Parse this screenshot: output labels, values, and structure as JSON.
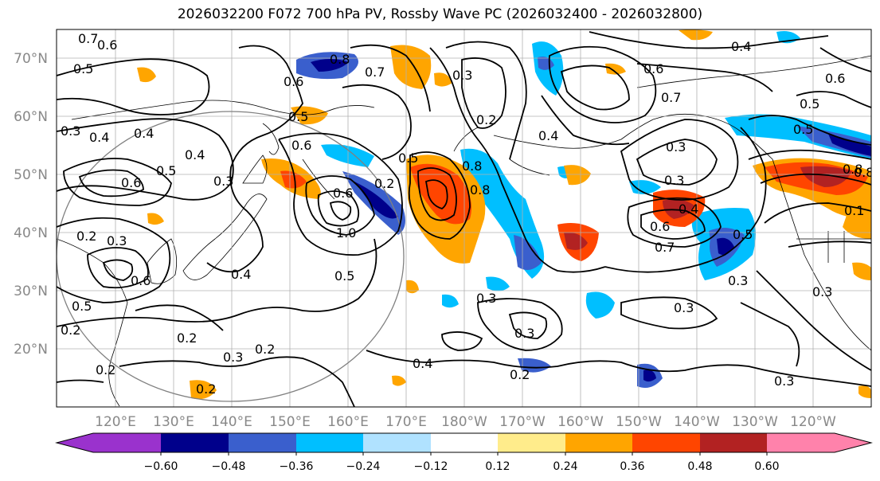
{
  "title": "2026032200 F072 700 hPa PV, Rossby Wave PC (2026032400 - 2026032800)",
  "axes": {
    "lat_labels": [
      "70°N",
      "60°N",
      "50°N",
      "40°N",
      "30°N",
      "20°N"
    ],
    "lon_labels": [
      "120°E",
      "130°E",
      "140°E",
      "150°E",
      "160°E",
      "170°E",
      "180°W",
      "170°W",
      "160°W",
      "150°W",
      "140°W",
      "130°W",
      "120°W"
    ]
  },
  "colorbar": {
    "ticks": [
      "−0.60",
      "−0.48",
      "−0.36",
      "−0.24",
      "−0.12",
      "0.12",
      "0.24",
      "0.36",
      "0.48",
      "0.60"
    ],
    "colors": [
      "#9a32cd",
      "#00008b",
      "#3a5fcd",
      "#00bfff",
      "#b0e2ff",
      "#ffffff",
      "#ffec8b",
      "#ffa500",
      "#ff4500",
      "#b22222",
      "#ff82ab"
    ]
  },
  "contour_labels": [
    "0.7",
    "0.6",
    "0.5",
    "0.3",
    "0.4",
    "0.4",
    "0.5",
    "0.6",
    "0.3",
    "0.4",
    "0.2",
    "0.3",
    "0.6",
    "0.5",
    "0.4",
    "0.2",
    "0.5",
    "0.6",
    "0.8",
    "0.7",
    "0.6",
    "0.5",
    "0.6",
    "0.2",
    "0.3",
    "0.8",
    "0.8",
    "0.6",
    "0.4",
    "0.7",
    "0.5",
    "0.3",
    "0.5",
    "0.6",
    "0.8",
    "0.1",
    "0.6",
    "0.3",
    "0.3",
    "0.3",
    "0.2",
    "0.4",
    "0.2",
    "0.3",
    "0.2",
    "0.3",
    "0.2",
    "0.2",
    "0.3",
    "1.0",
    "0.5",
    "0.4",
    "0.3",
    "0.3",
    "0.4",
    "0.5",
    "0.2",
    "0.7",
    "0.8"
  ]
}
